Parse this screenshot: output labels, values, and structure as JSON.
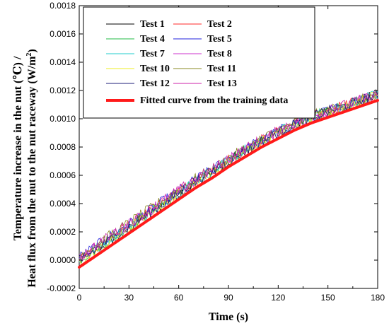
{
  "chart_data": {
    "type": "line",
    "xlabel": "Time (s)",
    "ylabel_line1": "Temperature increase in the nut  (℃)  /",
    "ylabel_line2": "Heat flux from the nut to the nut raceway  (W/m",
    "ylabel_sup": "2",
    "ylabel_close": ")",
    "xlim": [
      0,
      180
    ],
    "ylim": [
      -0.0002,
      0.0018
    ],
    "xticks": [
      0,
      30,
      60,
      90,
      120,
      150,
      180
    ],
    "yticks": [
      "-0.0002",
      "0.0000",
      "0.0002",
      "0.0004",
      "0.0006",
      "0.0008",
      "0.0010",
      "0.0012",
      "0.0014",
      "0.0016",
      "0.0018"
    ],
    "legend_position": "top-left",
    "x_step": 1,
    "series": [
      {
        "name": "Test 1",
        "color": "#000000",
        "base": 0.0
      },
      {
        "name": "Test 2",
        "color": "#ff2a2a",
        "base": 2e-05
      },
      {
        "name": "Test 4",
        "color": "#22bb44",
        "base": 1e-05
      },
      {
        "name": "Test 5",
        "color": "#2222dd",
        "base": 3e-05
      },
      {
        "name": "Test 7",
        "color": "#22cccc",
        "base": 1.5e-05
      },
      {
        "name": "Test 8",
        "color": "#cc33cc",
        "base": 2.5e-05
      },
      {
        "name": "Test 10",
        "color": "#eeee22",
        "base": -1e-05
      },
      {
        "name": "Test 11",
        "color": "#888822",
        "base": 4e-05
      },
      {
        "name": "Test 12",
        "color": "#1c1c7a",
        "base": 5e-06
      },
      {
        "name": "Test 13",
        "color": "#cc22aa",
        "base": 3.5e-05
      }
    ],
    "fitted": {
      "name": "Fitted curve from the training data",
      "color": "#ff1a1a",
      "x": [
        0,
        10,
        20,
        30,
        40,
        50,
        60,
        70,
        80,
        90,
        100,
        110,
        120,
        130,
        140,
        150,
        160,
        170,
        180
      ],
      "y": [
        -5e-05,
        3e-05,
        0.00011,
        0.00019,
        0.00027,
        0.00035,
        0.00043,
        0.00051,
        0.00058,
        0.00066,
        0.00073,
        0.0008,
        0.00086,
        0.00092,
        0.00097,
        0.00101,
        0.00105,
        0.00109,
        0.00113
      ]
    }
  }
}
